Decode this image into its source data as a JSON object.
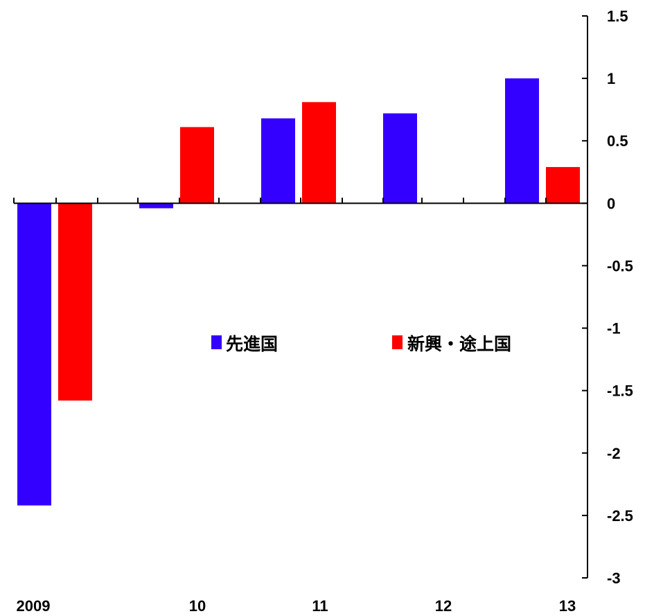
{
  "chart_data": {
    "type": "bar",
    "categories": [
      "2009",
      "10",
      "11",
      "12",
      "13"
    ],
    "series": [
      {
        "name": "先進国",
        "color": "#3300FF",
        "values": [
          -2.42,
          -0.04,
          0.68,
          0.72,
          1.0
        ]
      },
      {
        "name": "新興・途上国",
        "color": "#FF0000",
        "values": [
          -1.58,
          0.61,
          0.81,
          null,
          0.29
        ]
      }
    ],
    "ylim": [
      -3,
      1.5
    ],
    "yticks": [
      "1.5",
      "1",
      "0.5",
      "0",
      "-0.5",
      "-1",
      "-1.5",
      "-2",
      "-2.5",
      "-3"
    ],
    "y_axis_position": "right",
    "legend_position": "center",
    "grid": false
  }
}
